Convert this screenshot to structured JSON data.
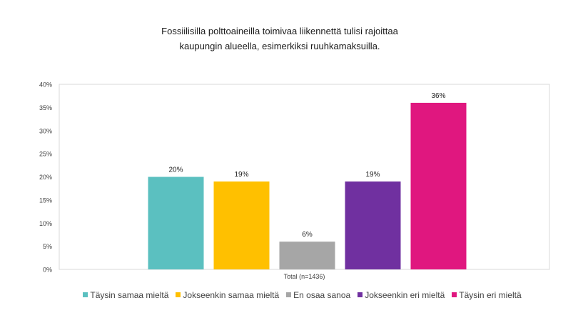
{
  "chart_data": {
    "type": "bar",
    "title_lines": [
      "Fossiilisilla polttoaineilla toimivaa liikennettä tulisi rajoittaa",
      "kaupungin alueella, esimerkiksi ruuhkamaksuilla."
    ],
    "categories": [
      "Total (n=1436)"
    ],
    "series": [
      {
        "name": "Täysin samaa mieltä",
        "value": 20,
        "label": "20%",
        "color": "#5BC0C0"
      },
      {
        "name": "Jokseenkin samaa mieltä",
        "value": 19,
        "label": "19%",
        "color": "#FFC000"
      },
      {
        "name": "En osaa sanoa",
        "value": 6,
        "label": "6%",
        "color": "#A6A6A6"
      },
      {
        "name": "Jokseenkin eri mieltä",
        "value": 19,
        "label": "19%",
        "color": "#7030A0"
      },
      {
        "name": "Täysin eri mieltä",
        "value": 36,
        "label": "36%",
        "color": "#E0177F"
      }
    ],
    "ylim": [
      0,
      40
    ],
    "yticks": [
      "0%",
      "5%",
      "10%",
      "15%",
      "20%",
      "25%",
      "30%",
      "35%",
      "40%"
    ],
    "legend_position": "bottom",
    "grid": false
  }
}
